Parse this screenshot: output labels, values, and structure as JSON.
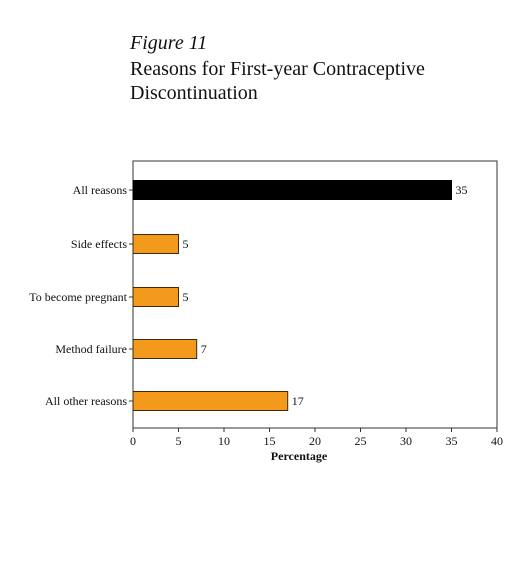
{
  "figure": {
    "label": "Figure 11",
    "title": "Reasons for First-year Contraceptive Discontinuation"
  },
  "colors": {
    "highlight_bar": "#000000",
    "bar": "#f39a1c",
    "bar_stroke": "#3a2a10",
    "frame": "#333333"
  },
  "chart_data": {
    "type": "bar",
    "orientation": "horizontal",
    "title": "Reasons for First-year Contraceptive Discontinuation",
    "xlabel": "Percentage",
    "ylabel": "",
    "categories": [
      "All reasons",
      "Side effects",
      "To become pregnant",
      "Method failure",
      "All other reasons"
    ],
    "values": [
      35,
      5,
      5,
      7,
      17
    ],
    "data_labels": [
      "35",
      "5",
      "5",
      "7",
      "17"
    ],
    "xlim": [
      0,
      40
    ],
    "xticks": [
      0,
      5,
      10,
      15,
      20,
      25,
      30,
      35,
      40
    ],
    "grid": false,
    "legend": "none"
  }
}
